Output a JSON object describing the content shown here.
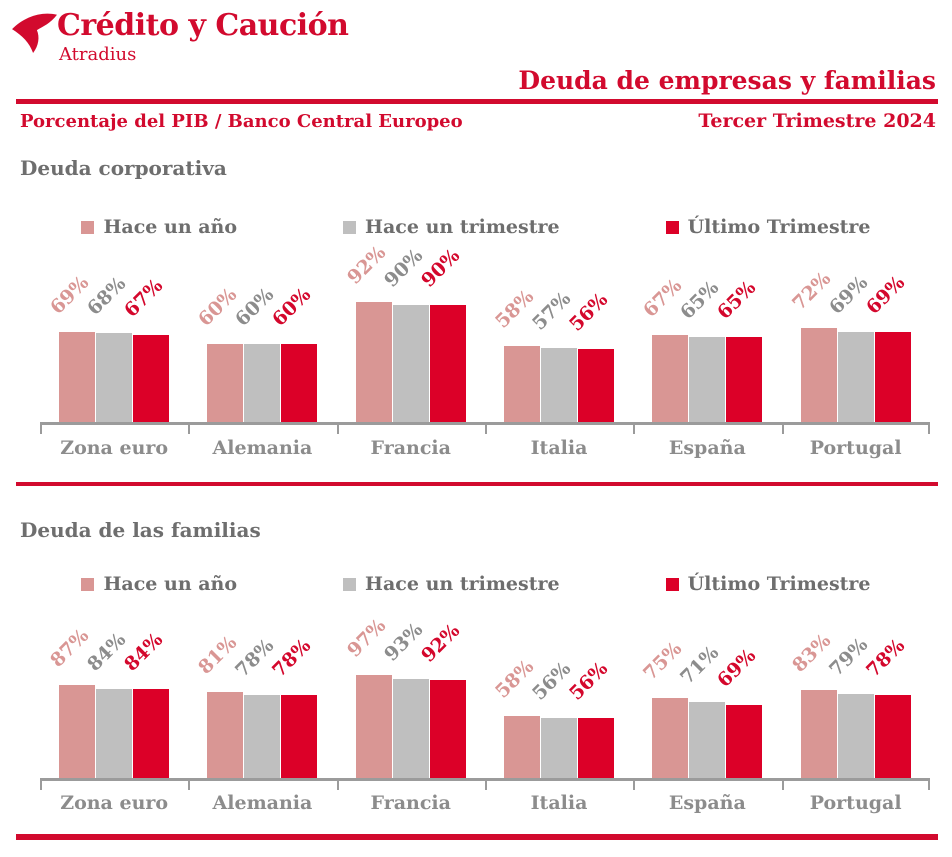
{
  "brand": {
    "name": "Crédito y Caución",
    "subname": "Atradius",
    "logo_icon": "tri-blade-bird-icon"
  },
  "header": {
    "title": "Deuda de empresas y familias",
    "subtitle_left": "Porcentaje del PIB / Banco Central Europeo",
    "subtitle_right": "Tercer Trimestre 2024"
  },
  "colors": {
    "brand_red": "#d20a2e",
    "bar_last_quarter_red": "#dc0028",
    "bar_year_ago_pink": "#d99694",
    "bar_quarter_ago_gray": "#bfbfbf",
    "title_gray": "#6e6e6e",
    "value_label_gray": "#8c8c8c",
    "axis_gray": "#9b9b9b"
  },
  "chart_data": [
    {
      "type": "bar",
      "title": "Deuda corporativa",
      "unit": "%",
      "categories": [
        "Zona euro",
        "Alemania",
        "Francia",
        "Italia",
        "España",
        "Portugal"
      ],
      "series": [
        {
          "name": "Hace un año",
          "color_key": "pink",
          "values": [
            69,
            60,
            92,
            58,
            67,
            72
          ]
        },
        {
          "name": "Hace un trimestre",
          "color_key": "gray",
          "values": [
            68,
            60,
            90,
            57,
            65,
            69
          ]
        },
        {
          "name": "Último Trimestre",
          "color_key": "red",
          "values": [
            67,
            60,
            90,
            56,
            65,
            69
          ]
        }
      ],
      "ylim": [
        0,
        100
      ],
      "grid": false,
      "legend_position": "top",
      "value_labels": "above-bars-rotated"
    },
    {
      "type": "bar",
      "title": "Deuda de las familias",
      "unit": "%",
      "categories": [
        "Zona euro",
        "Alemania",
        "Francia",
        "Italia",
        "España",
        "Portugal"
      ],
      "series": [
        {
          "name": "Hace un año",
          "color_key": "pink",
          "values": [
            87,
            81,
            97,
            58,
            75,
            83
          ]
        },
        {
          "name": "Hace un trimestre",
          "color_key": "gray",
          "values": [
            84,
            78,
            93,
            56,
            71,
            79
          ]
        },
        {
          "name": "Último Trimestre",
          "color_key": "red",
          "values": [
            84,
            78,
            92,
            56,
            69,
            78
          ]
        }
      ],
      "ylim": [
        0,
        100
      ],
      "grid": false,
      "legend_position": "top",
      "value_labels": "above-bars-rotated"
    }
  ]
}
